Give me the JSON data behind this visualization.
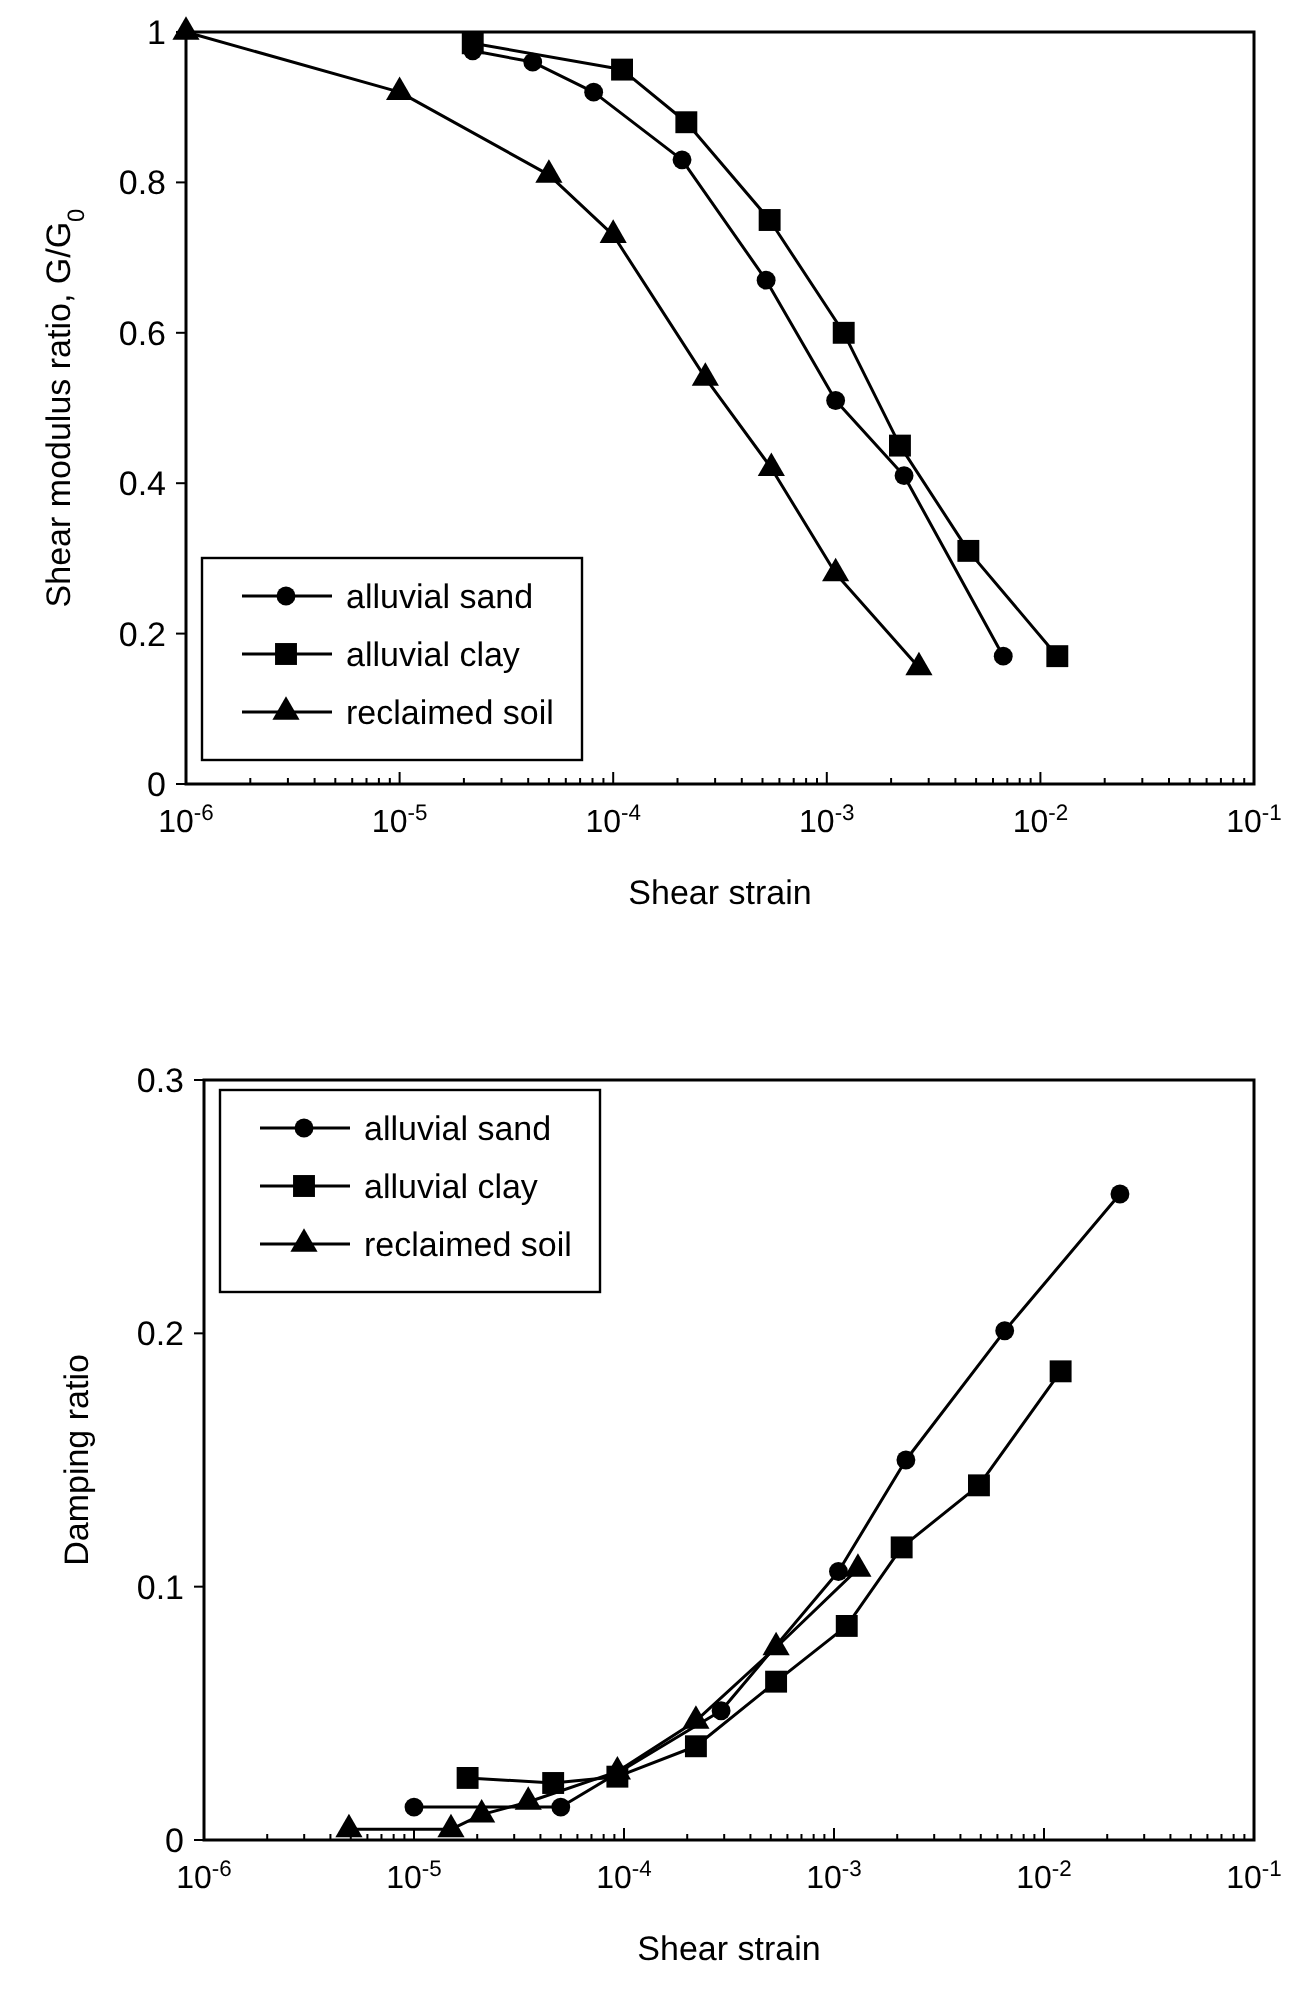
{
  "chart_data": [
    {
      "type": "line",
      "xlabel": "Shear strain",
      "ylabel": "Shear modulus ratio, G/G$_{0}$",
      "log": "x",
      "xlim": [
        1e-06,
        0.1
      ],
      "xticks": [
        {
          "value": 1e-06,
          "label": "10$^{-6}$"
        },
        {
          "value": 1e-05,
          "label": "10$^{-5}$"
        },
        {
          "value": 0.0001,
          "label": "10$^{-4}$"
        },
        {
          "value": 0.001,
          "label": "10$^{-3}$"
        },
        {
          "value": 0.01,
          "label": "10$^{-2}$"
        },
        {
          "value": 0.1,
          "label": "10$^{-1}$"
        }
      ],
      "ylim": [
        0,
        1
      ],
      "yticks": [
        0,
        0.2,
        0.4,
        0.6,
        0.8,
        1
      ],
      "grid": false,
      "legend": "bottom left",
      "series": [
        {
          "name": "alluvial sand",
          "color": "#000000",
          "marker": "circle",
          "x": [
            2.2e-05,
            4.2e-05,
            8.1e-05,
            0.00021,
            0.00052,
            0.0011,
            0.0023,
            0.0067
          ],
          "values": [
            0.975,
            0.96,
            0.92,
            0.83,
            0.67,
            0.51,
            0.41,
            0.17
          ]
        },
        {
          "name": "alluvial clay",
          "color": "#000000",
          "marker": "square",
          "x": [
            2.2e-05,
            0.00011,
            0.00022,
            0.00054,
            0.0012,
            0.0022,
            0.0046,
            0.012
          ],
          "values": [
            0.985,
            0.95,
            0.88,
            0.75,
            0.6,
            0.45,
            0.31,
            0.17
          ]
        },
        {
          "name": "reclaimed soil",
          "color": "#000000",
          "marker": "triangle",
          "x": [
            1e-06,
            1e-05,
            5e-05,
            0.0001,
            0.00027,
            0.00055,
            0.0011,
            0.0027
          ],
          "values": [
            1,
            0.92,
            0.81,
            0.73,
            0.54,
            0.42,
            0.28,
            0.155
          ]
        }
      ]
    },
    {
      "type": "line",
      "xlabel": "Shear strain",
      "ylabel": "Damping ratio",
      "log": "x",
      "xlim": [
        1e-06,
        0.1
      ],
      "xticks": [
        {
          "value": 1e-06,
          "label": "10$^{-6}$"
        },
        {
          "value": 1e-05,
          "label": "10$^{-5}$"
        },
        {
          "value": 0.0001,
          "label": "10$^{-4}$"
        },
        {
          "value": 0.001,
          "label": "10$^{-3}$"
        },
        {
          "value": 0.01,
          "label": "10$^{-2}$"
        },
        {
          "value": 0.1,
          "label": "10$^{-1}$"
        }
      ],
      "ylim": [
        0,
        0.3
      ],
      "yticks": [
        0,
        0.1,
        0.2,
        0.3
      ],
      "grid": false,
      "legend": "top left",
      "series": [
        {
          "name": "alluvial sand",
          "color": "#000000",
          "marker": "circle",
          "x": [
            1e-05,
            5e-05,
            0.00029,
            0.00105,
            0.0022,
            0.0065,
            0.023
          ],
          "values": [
            0.013,
            0.013,
            0.051,
            0.106,
            0.15,
            0.201,
            0.255
          ]
        },
        {
          "name": "alluvial clay",
          "color": "#000000",
          "marker": "square",
          "x": [
            1.8e-05,
            4.6e-05,
            9.3e-05,
            0.00022,
            0.00053,
            0.00115,
            0.0021,
            0.0049,
            0.012
          ],
          "values": [
            0.0245,
            0.0225,
            0.025,
            0.037,
            0.0625,
            0.0845,
            0.1155,
            0.14,
            0.185
          ]
        },
        {
          "name": "reclaimed soil",
          "color": "#000000",
          "marker": "triangle",
          "x": [
            4.9e-06,
            1.5e-05,
            2.1e-05,
            3.5e-05,
            9.3e-05,
            0.00022,
            0.00053,
            0.0013
          ],
          "values": [
            0.0042,
            0.0042,
            0.01,
            0.015,
            0.027,
            0.047,
            0.076,
            0.107
          ]
        }
      ]
    }
  ]
}
